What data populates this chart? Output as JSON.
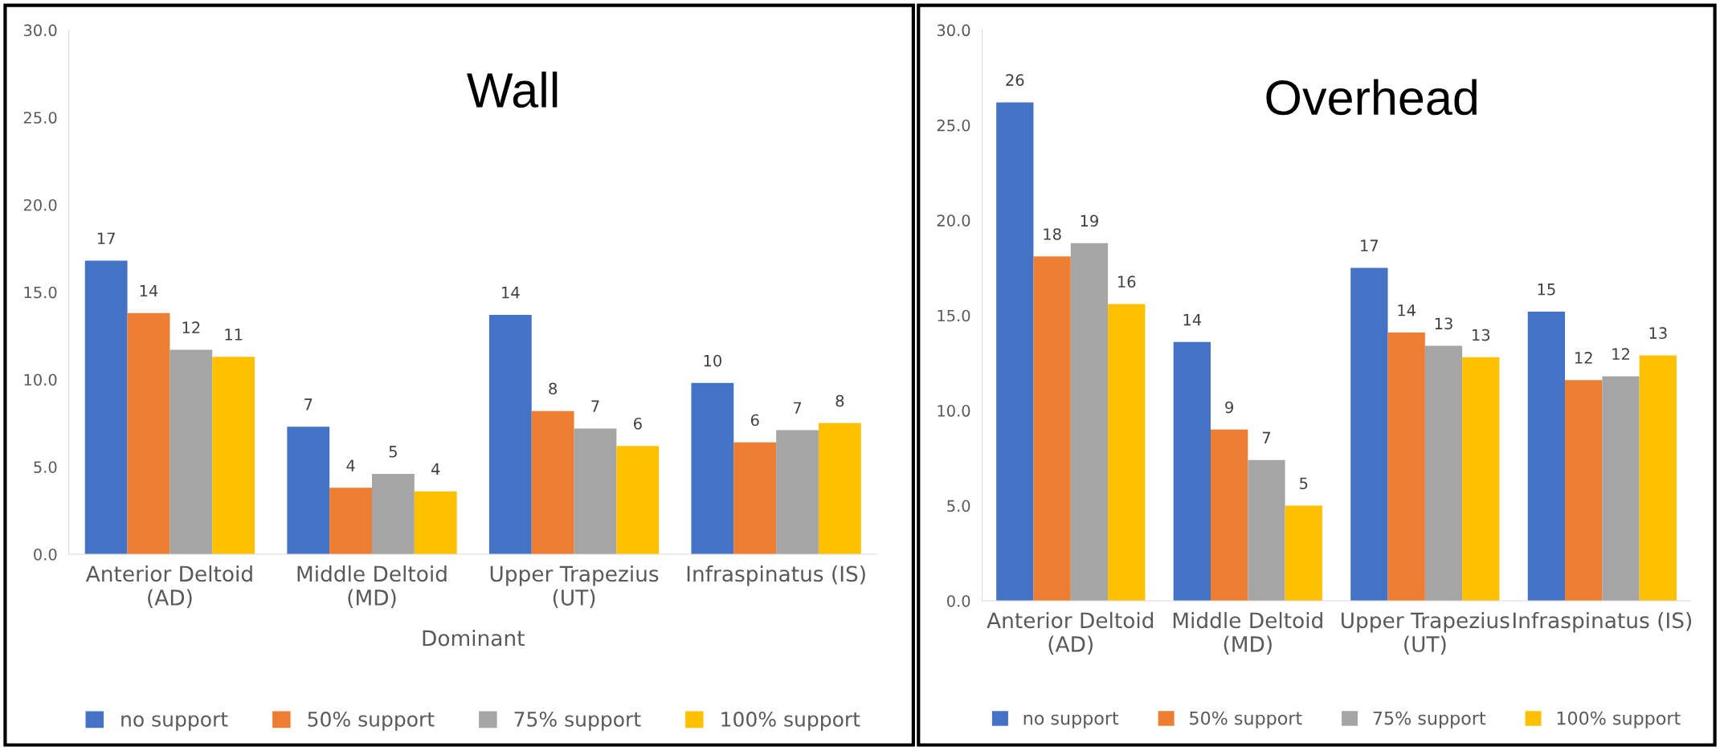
{
  "chart_data": [
    {
      "type": "bar",
      "title": "Wall",
      "xlabel": "Dominant",
      "categories": [
        "Anterior Deltoid\n(AD)",
        "Middle Deltoid\n(MD)",
        "Upper Trapezius\n(UT)",
        "Infraspinatus (IS)"
      ],
      "series": [
        {
          "name": "no support",
          "color": "#4472c4",
          "values": [
            16.8,
            7.3,
            13.7,
            9.8
          ],
          "value_labels": [
            "17",
            "7",
            "14",
            "10"
          ]
        },
        {
          "name": "50% support",
          "color": "#ed7d31",
          "values": [
            13.8,
            3.8,
            8.2,
            6.4
          ],
          "value_labels": [
            "14",
            "4",
            "8",
            "6"
          ]
        },
        {
          "name": "75% support",
          "color": "#a5a5a5",
          "values": [
            11.7,
            4.6,
            7.2,
            7.1
          ],
          "value_labels": [
            "12",
            "5",
            "7",
            "7"
          ]
        },
        {
          "name": "100% support",
          "color": "#ffc000",
          "values": [
            11.3,
            3.6,
            6.2,
            7.5
          ],
          "value_labels": [
            "11",
            "4",
            "6",
            "8"
          ]
        }
      ],
      "ylim": [
        0,
        30
      ],
      "yticks": [
        {
          "value": 0,
          "label": "0.0"
        },
        {
          "value": 5,
          "label": "5.0"
        },
        {
          "value": 10,
          "label": "10.0"
        },
        {
          "value": 15,
          "label": "15.0"
        },
        {
          "value": 20,
          "label": "20.0"
        },
        {
          "value": 25,
          "label": "25.0"
        },
        {
          "value": 30,
          "label": "30.0"
        }
      ],
      "grid": false,
      "legend": "bottom"
    },
    {
      "type": "bar",
      "title": "Overhead",
      "categories": [
        "Anterior Deltoid\n(AD)",
        "Middle Deltoid\n(MD)",
        "Upper Trapezius\n(UT)",
        "Infraspinatus (IS)"
      ],
      "series": [
        {
          "name": "no support",
          "color": "#4472c4",
          "values": [
            26.2,
            13.6,
            17.5,
            15.2
          ],
          "value_labels": [
            "26",
            "14",
            "17",
            "15"
          ]
        },
        {
          "name": "50% support",
          "color": "#ed7d31",
          "values": [
            18.1,
            9.0,
            14.1,
            11.6
          ],
          "value_labels": [
            "18",
            "9",
            "14",
            "12"
          ]
        },
        {
          "name": "75% support",
          "color": "#a5a5a5",
          "values": [
            18.8,
            7.4,
            13.4,
            11.8
          ],
          "value_labels": [
            "19",
            "7",
            "13",
            "12"
          ]
        },
        {
          "name": "100% support",
          "color": "#ffc000",
          "values": [
            15.6,
            5.0,
            12.8,
            12.9
          ],
          "value_labels": [
            "16",
            "5",
            "13",
            "13"
          ]
        }
      ],
      "ylim": [
        0,
        30
      ],
      "yticks": [
        {
          "value": 0,
          "label": "0.0"
        },
        {
          "value": 5,
          "label": "5.0"
        },
        {
          "value": 10,
          "label": "10.0"
        },
        {
          "value": 15,
          "label": "15.0"
        },
        {
          "value": 20,
          "label": "20.0"
        },
        {
          "value": 25,
          "label": "25.0"
        },
        {
          "value": 30,
          "label": "30.0"
        }
      ],
      "grid": false,
      "legend": "bottom"
    }
  ]
}
